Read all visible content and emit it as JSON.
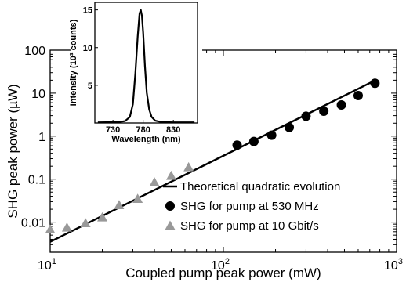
{
  "chart_data": [
    {
      "type": "scatter",
      "scale": "log-log",
      "xlabel": "Coupled pump peak power (mW)",
      "ylabel": "SHG peak power (µW)",
      "xlim": [
        10,
        1000
      ],
      "ylim": [
        0.002,
        100
      ],
      "x_ticks": [
        {
          "value": 10,
          "base": "10",
          "exp": "1"
        },
        {
          "value": 100,
          "base": "10",
          "exp": "2"
        },
        {
          "value": 1000,
          "base": "10",
          "exp": "3"
        }
      ],
      "y_ticks": [
        {
          "value": 0.01,
          "label": "0.01"
        },
        {
          "value": 0.1,
          "label": "0.1"
        },
        {
          "value": 1,
          "label": "1"
        },
        {
          "value": 10,
          "label": "10"
        },
        {
          "value": 100,
          "label": "100"
        }
      ],
      "grid": false,
      "legend_position": "bottom-right",
      "series": [
        {
          "name": "Theoretical quadratic evolution",
          "kind": "line",
          "color": "#000000",
          "x": [
            10,
            750
          ],
          "y": [
            0.0035,
            19.7
          ]
        },
        {
          "name": "SHG for pump at 530 MHz",
          "kind": "circle-markers",
          "color": "#000000",
          "x": [
            120,
            150,
            190,
            240,
            300,
            380,
            480,
            600,
            750
          ],
          "y": [
            0.62,
            0.75,
            1.05,
            1.6,
            2.9,
            3.8,
            5.3,
            8.8,
            17.0
          ]
        },
        {
          "name": "SHG for pump at 10 Gbit/s",
          "kind": "triangle-markers",
          "color": "#999999",
          "x": [
            10,
            12.5,
            16,
            20,
            25,
            32,
            40,
            50,
            63
          ],
          "y": [
            0.0068,
            0.0075,
            0.0095,
            0.013,
            0.025,
            0.035,
            0.085,
            0.12,
            0.19
          ]
        }
      ]
    },
    {
      "type": "line",
      "role": "inset",
      "xlabel": "Wavelength (nm)",
      "ylabel": "Intensity (10³ counts)",
      "xlim": [
        700,
        870
      ],
      "ylim": [
        0,
        16
      ],
      "x_ticks": [
        730,
        780,
        830
      ],
      "y_ticks": [
        5,
        10,
        15
      ],
      "series": [
        {
          "name": "",
          "color": "#000000",
          "x": [
            705,
            740,
            750,
            758,
            763,
            767,
            771,
            774,
            776,
            778,
            780,
            783,
            786,
            790,
            794,
            800,
            810,
            830,
            865
          ],
          "y": [
            0.08,
            0.12,
            0.25,
            0.8,
            2.5,
            6.5,
            11.5,
            14.5,
            15.0,
            14.2,
            12.0,
            7.5,
            4.0,
            1.8,
            0.8,
            0.3,
            0.12,
            0.08,
            0.08
          ]
        }
      ]
    }
  ]
}
